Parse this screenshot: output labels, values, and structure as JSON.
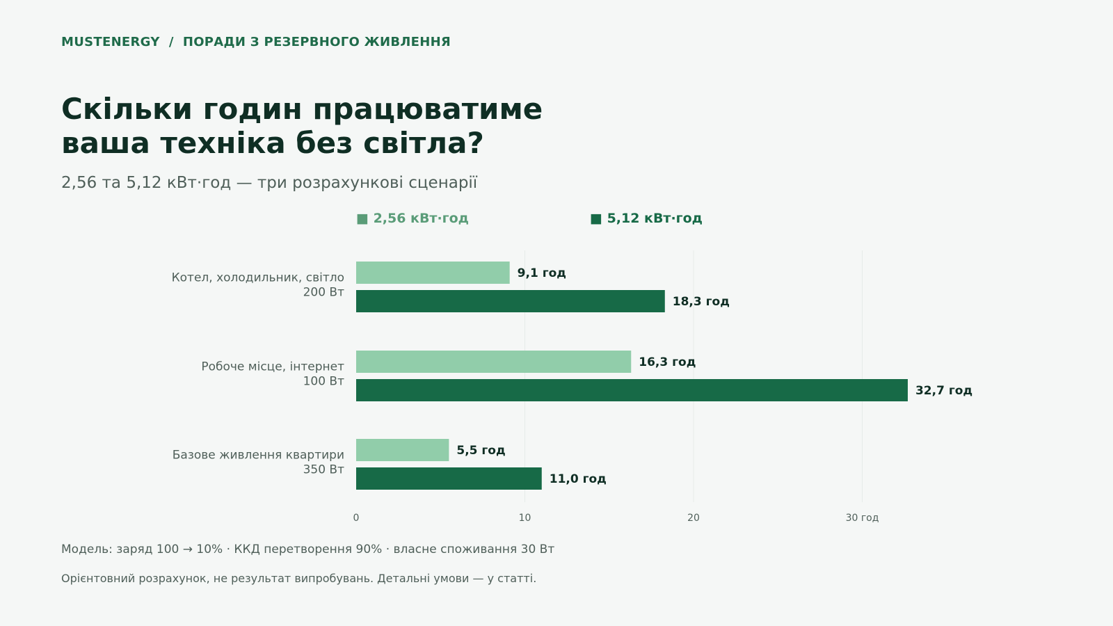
{
  "breadcrumb": "MUSTENERGY  /  ПОРАДИ З РЕЗЕРВНОГО ЖИВЛЕННЯ",
  "title_lines": [
    "Скільки годин працюватиме",
    "ваша техніка без світла?"
  ],
  "subtitle": "2,56 та 5,12 кВт·год — три розрахункові сценарії",
  "footnote": "Модель: заряд 100 → 10% · ККД перетворення 90% · власне споживання 30 Вт",
  "disclaimer": "Орієнтовний розрахунок, не результат випробувань. Детальні умови — у статті.",
  "chart_data": {
    "type": "bar",
    "orientation": "horizontal",
    "categories": [
      [
        "Котел, холодильник, світло",
        "200 Вт"
      ],
      [
        "Робоче місце, інтернет",
        "100 Вт"
      ],
      [
        "Базове живлення квартири",
        "350 Вт"
      ]
    ],
    "series": [
      {
        "name": "2,56 кВт·год",
        "color": "#91cdaa",
        "legend_color": "#5a9c78",
        "values": [
          9.1,
          16.3,
          5.5
        ],
        "labels": [
          "9,1 год",
          "16,3 год",
          "5,5 год"
        ]
      },
      {
        "name": "5,12 кВт·год",
        "color": "#176a47",
        "legend_color": "#176a47",
        "values": [
          18.3,
          32.7,
          11.0
        ],
        "labels": [
          "18,3 год",
          "32,7 год",
          "11,0 год"
        ]
      }
    ],
    "xlim": [
      0,
      40
    ],
    "xticks": [
      0,
      10,
      20,
      30
    ],
    "xtick_labels": [
      "0",
      "10",
      "20",
      "30 год"
    ],
    "grid": true,
    "legend_position": "top",
    "legend_marker": "■"
  }
}
